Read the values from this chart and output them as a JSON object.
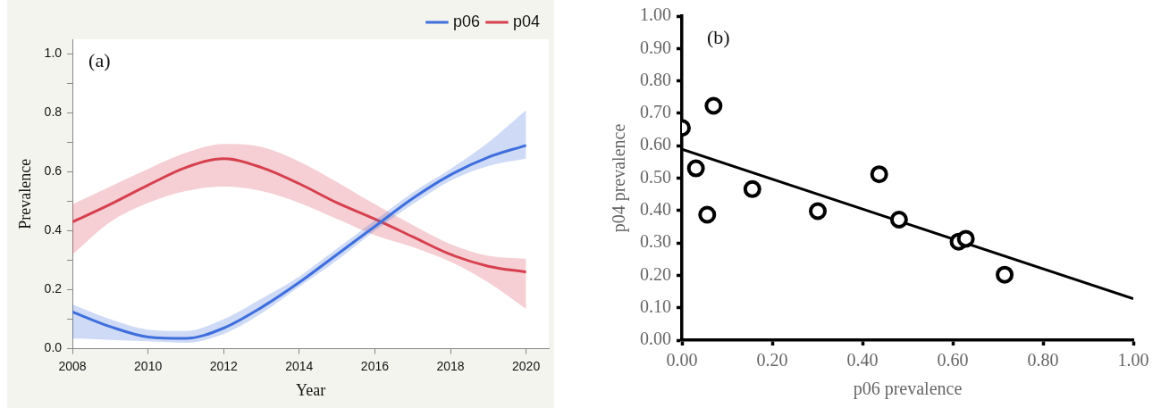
{
  "chart_data": [
    {
      "type": "line",
      "annotations": [
        "(a)"
      ],
      "xlabel": "Year",
      "ylabel": "Prevalence",
      "x": [
        2008,
        2009,
        2010,
        2011,
        2012,
        2013,
        2014,
        2015,
        2016,
        2017,
        2018,
        2019,
        2020
      ],
      "series": [
        {
          "name": "p06",
          "color": "#3f6fdc",
          "values": [
            0.125,
            0.075,
            0.04,
            0.035,
            0.07,
            0.14,
            0.225,
            0.32,
            0.415,
            0.51,
            0.59,
            0.65,
            0.69
          ],
          "lower": [
            0.035,
            0.03,
            0.025,
            0.02,
            0.05,
            0.12,
            0.21,
            0.3,
            0.4,
            0.49,
            0.57,
            0.62,
            0.645
          ],
          "upper": [
            0.15,
            0.1,
            0.065,
            0.06,
            0.1,
            0.17,
            0.245,
            0.34,
            0.435,
            0.53,
            0.61,
            0.7,
            0.81
          ]
        },
        {
          "name": "p04",
          "color": "#d6404f",
          "values": [
            0.43,
            0.49,
            0.555,
            0.615,
            0.645,
            0.615,
            0.56,
            0.495,
            0.44,
            0.38,
            0.32,
            0.28,
            0.26
          ],
          "lower": [
            0.32,
            0.43,
            0.495,
            0.535,
            0.55,
            0.535,
            0.495,
            0.44,
            0.385,
            0.345,
            0.295,
            0.225,
            0.135
          ],
          "upper": [
            0.49,
            0.55,
            0.61,
            0.665,
            0.695,
            0.685,
            0.635,
            0.565,
            0.49,
            0.42,
            0.355,
            0.315,
            0.305
          ]
        }
      ],
      "xlim": [
        2008,
        2020.6
      ],
      "xticks": [
        2008,
        2010,
        2012,
        2014,
        2016,
        2018,
        2020
      ],
      "ylim": [
        0,
        1.05
      ],
      "yticks": [
        {
          "value": 0,
          "label": "0.0"
        },
        {
          "value": 0.1,
          "label": null
        },
        0.2,
        {
          "value": 0.3,
          "label": null
        },
        0.4,
        {
          "value": 0.5,
          "label": null
        },
        0.6,
        {
          "value": 0.7,
          "label": null
        },
        0.8,
        {
          "value": 0.9,
          "label": null
        },
        {
          "value": 1,
          "label": "1.0"
        }
      ],
      "legend": "top right",
      "marker": "none",
      "grid": false
    },
    {
      "type": "scatter",
      "annotations": [
        "(b)"
      ],
      "xlabel": "p06 prevalence",
      "ylabel": "p04 prevalence",
      "marker": "circle",
      "grid": false,
      "series": [
        {
          "color": "#000000",
          "x": [
            0.0,
            0.07,
            0.031,
            0.056,
            0.156,
            0.301,
            0.437,
            0.481,
            0.613,
            0.629,
            0.715
          ],
          "values": [
            0.655,
            0.723,
            0.53,
            0.387,
            0.466,
            0.398,
            0.512,
            0.372,
            0.304,
            0.313,
            0.202
          ]
        },
        {
          "type": "line",
          "marker": "none",
          "color": "#000000",
          "x": [
            0,
            1
          ],
          "values": [
            0.589,
            0.128
          ]
        }
      ],
      "xlim": [
        0,
        1
      ],
      "xticks": [
        {
          "value": 0,
          "label": "0.00"
        },
        {
          "value": 0.2,
          "label": "0.20"
        },
        {
          "value": 0.4,
          "label": "0.40"
        },
        {
          "value": 0.6,
          "label": "0.60"
        },
        {
          "value": 0.8,
          "label": "0.80"
        },
        {
          "value": 1,
          "label": "1.00"
        }
      ],
      "ylim": [
        0,
        1
      ],
      "yticks": [
        {
          "value": 0,
          "label": "0.00"
        },
        {
          "value": 0.1,
          "label": "0.10"
        },
        {
          "value": 0.2,
          "label": "0.20"
        },
        {
          "value": 0.3,
          "label": "0.30"
        },
        {
          "value": 0.4,
          "label": "0.40"
        },
        {
          "value": 0.5,
          "label": "0.50"
        },
        {
          "value": 0.6,
          "label": "0.60"
        },
        {
          "value": 0.7,
          "label": "0.70"
        },
        {
          "value": 0.8,
          "label": "0.80"
        },
        {
          "value": 0.9,
          "label": "0.90"
        },
        {
          "value": 1,
          "label": "1.00"
        }
      ]
    }
  ]
}
